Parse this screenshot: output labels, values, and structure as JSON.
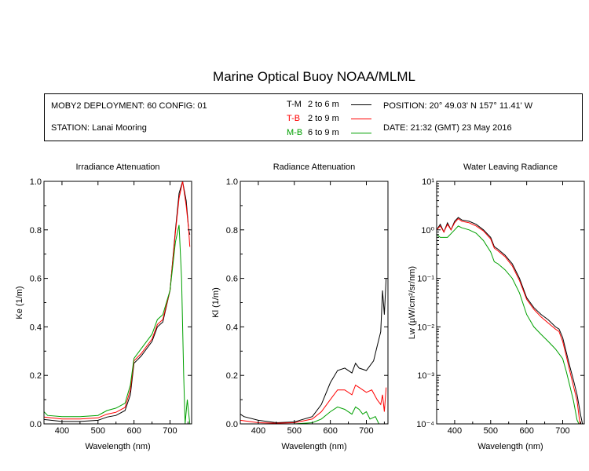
{
  "figure_title": "Marine Optical Buoy NOAA/MLML",
  "info": {
    "deployment": "MOBY2 DEPLOYMENT: 60 CONFIG: 01",
    "station": "STATION: Lanai Mooring",
    "position": "POSITION: 20° 49.03' N   157° 11.41' W",
    "date": "DATE: 21:32 (GMT) 23 May 2016",
    "legend": [
      {
        "name": "T-M",
        "range": "2 to 6  m",
        "color": "#000000"
      },
      {
        "name": "T-B",
        "range": "2 to 9  m",
        "color": "#ff0000"
      },
      {
        "name": "M-B",
        "range": "6 to 9  m",
        "color": "#00a000"
      }
    ]
  },
  "chart_data": [
    {
      "type": "line",
      "title": "Irradiance Attenuation",
      "xlabel": "Wavelength (nm)",
      "ylabel": "Ke  (1/m)",
      "xlim": [
        350,
        760
      ],
      "ylim": [
        0,
        1.0
      ],
      "xticks": [
        400,
        500,
        600,
        700
      ],
      "yticks": [
        0.0,
        0.2,
        0.4,
        0.6,
        0.8,
        1.0
      ],
      "ytick_labels": [
        "0.0",
        "0.2",
        "0.4",
        "0.6",
        "0.8",
        "1.0"
      ],
      "series": [
        {
          "name": "T-M",
          "color": "#000000",
          "x": [
            350,
            400,
            450,
            500,
            525,
            550,
            575,
            590,
            600,
            620,
            650,
            665,
            680,
            700,
            715,
            725,
            735,
            745,
            752,
            755
          ],
          "y": [
            0.018,
            0.01,
            0.01,
            0.015,
            0.028,
            0.035,
            0.055,
            0.12,
            0.25,
            0.28,
            0.34,
            0.4,
            0.42,
            0.55,
            0.8,
            0.95,
            1.0,
            0.92,
            0.8,
            0.78
          ]
        },
        {
          "name": "T-B",
          "color": "#ff0000",
          "x": [
            350,
            400,
            450,
            500,
            525,
            550,
            575,
            590,
            600,
            620,
            650,
            665,
            680,
            700,
            715,
            725,
            735,
            745,
            752,
            755
          ],
          "y": [
            0.028,
            0.02,
            0.02,
            0.025,
            0.04,
            0.048,
            0.068,
            0.14,
            0.26,
            0.29,
            0.35,
            0.41,
            0.43,
            0.55,
            0.79,
            0.93,
            1.0,
            0.9,
            0.8,
            0.73
          ]
        },
        {
          "name": "M-B",
          "color": "#00a000",
          "x": [
            350,
            360,
            400,
            450,
            500,
            525,
            550,
            575,
            590,
            600,
            620,
            650,
            665,
            680,
            700,
            715,
            725,
            732,
            738,
            742,
            748,
            755
          ],
          "y": [
            0.05,
            0.035,
            0.03,
            0.03,
            0.035,
            0.055,
            0.065,
            0.085,
            0.16,
            0.27,
            0.31,
            0.37,
            0.43,
            0.45,
            0.55,
            0.75,
            0.82,
            0.6,
            0.2,
            0.0,
            0.1,
            0.0
          ]
        }
      ]
    },
    {
      "type": "line",
      "title": "Radiance Attenuation",
      "xlabel": "Wavelength (nm)",
      "ylabel": "Kl  (1/m)",
      "xlim": [
        350,
        760
      ],
      "ylim": [
        0,
        1.0
      ],
      "xticks": [
        400,
        500,
        600,
        700
      ],
      "yticks": [
        0.0,
        0.2,
        0.4,
        0.6,
        0.8,
        1.0
      ],
      "ytick_labels": [
        "0.0",
        "0.2",
        "0.4",
        "0.6",
        "0.8",
        "1.0"
      ],
      "series": [
        {
          "name": "T-M",
          "color": "#000000",
          "x": [
            350,
            360,
            400,
            450,
            500,
            550,
            575,
            600,
            620,
            640,
            660,
            670,
            680,
            700,
            720,
            730,
            740,
            745,
            750,
            755
          ],
          "y": [
            0.04,
            0.03,
            0.015,
            0.005,
            0.008,
            0.03,
            0.08,
            0.17,
            0.22,
            0.23,
            0.21,
            0.25,
            0.23,
            0.22,
            0.26,
            0.32,
            0.38,
            0.55,
            0.45,
            0.6
          ]
        },
        {
          "name": "T-B",
          "color": "#ff0000",
          "x": [
            350,
            400,
            450,
            500,
            550,
            575,
            600,
            620,
            640,
            660,
            670,
            680,
            700,
            715,
            730,
            740,
            745,
            750,
            755
          ],
          "y": [
            0.015,
            0.005,
            0.003,
            0.005,
            0.02,
            0.05,
            0.1,
            0.14,
            0.14,
            0.12,
            0.16,
            0.15,
            0.13,
            0.14,
            0.1,
            0.08,
            0.12,
            0.05,
            0.15
          ]
        },
        {
          "name": "M-B",
          "color": "#00a000",
          "x": [
            350,
            400,
            450,
            500,
            550,
            575,
            600,
            620,
            640,
            660,
            670,
            680,
            690,
            700,
            710,
            725,
            735,
            745,
            755
          ],
          "y": [
            0.0,
            0.0,
            0.0,
            0.0,
            0.005,
            0.02,
            0.05,
            0.07,
            0.06,
            0.04,
            0.07,
            0.06,
            0.04,
            0.05,
            0.02,
            0.03,
            0.0,
            0.0,
            0.0
          ]
        }
      ]
    },
    {
      "type": "line",
      "title": "Water Leaving Radiance",
      "xlabel": "Wavelength (nm)",
      "ylabel": "Lw  (µW/cm²/sr/nm)",
      "xlim": [
        350,
        760
      ],
      "ylim": [
        0.0001,
        10
      ],
      "yscale": "log",
      "xticks": [
        400,
        500,
        600,
        700
      ],
      "yticks": [
        0.0001,
        0.001,
        0.01,
        0.1,
        1,
        10
      ],
      "ytick_labels": [
        "10⁻⁴",
        "10⁻³",
        "10⁻²",
        "10⁻¹",
        "10⁰",
        "10¹"
      ],
      "series": [
        {
          "name": "T-M",
          "color": "#000000",
          "x": [
            350,
            360,
            370,
            380,
            390,
            400,
            410,
            420,
            440,
            460,
            480,
            500,
            510,
            520,
            540,
            560,
            580,
            600,
            620,
            640,
            660,
            680,
            690,
            700,
            710,
            720,
            730,
            740,
            750,
            755
          ],
          "y": [
            1.0,
            1.3,
            0.9,
            1.4,
            1.0,
            1.5,
            1.8,
            1.6,
            1.5,
            1.3,
            1.0,
            0.7,
            0.45,
            0.4,
            0.3,
            0.2,
            0.1,
            0.04,
            0.025,
            0.018,
            0.014,
            0.01,
            0.009,
            0.006,
            0.003,
            0.0015,
            0.0008,
            0.0004,
            0.00015,
            0.0001
          ]
        },
        {
          "name": "T-B",
          "color": "#ff0000",
          "x": [
            350,
            360,
            370,
            380,
            390,
            400,
            410,
            420,
            440,
            460,
            480,
            500,
            510,
            520,
            540,
            560,
            580,
            600,
            620,
            640,
            660,
            680,
            690,
            700,
            710,
            720,
            730,
            740,
            748
          ],
          "y": [
            1.0,
            1.2,
            0.9,
            1.3,
            1.0,
            1.4,
            1.7,
            1.5,
            1.4,
            1.2,
            0.95,
            0.65,
            0.42,
            0.37,
            0.28,
            0.18,
            0.09,
            0.037,
            0.023,
            0.016,
            0.012,
            0.009,
            0.008,
            0.005,
            0.0025,
            0.0012,
            0.0006,
            0.0003,
            0.0001
          ]
        },
        {
          "name": "M-B",
          "color": "#00a000",
          "x": [
            350,
            360,
            380,
            400,
            410,
            420,
            440,
            460,
            480,
            500,
            510,
            520,
            540,
            560,
            580,
            600,
            620,
            640,
            660,
            680,
            700,
            710,
            720,
            730,
            740,
            745
          ],
          "y": [
            0.8,
            0.7,
            0.7,
            1.0,
            1.2,
            1.1,
            1.0,
            0.85,
            0.6,
            0.35,
            0.22,
            0.2,
            0.15,
            0.1,
            0.05,
            0.018,
            0.01,
            0.007,
            0.005,
            0.0035,
            0.0022,
            0.0012,
            0.0006,
            0.0003,
            0.00012,
            0.0001
          ]
        }
      ]
    }
  ]
}
